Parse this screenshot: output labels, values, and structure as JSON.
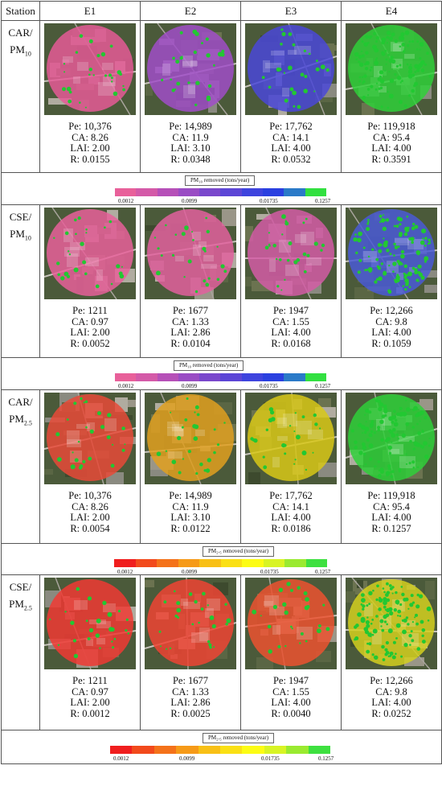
{
  "header": {
    "station_label": "Station",
    "columns": [
      "E1",
      "E2",
      "E3",
      "E4"
    ]
  },
  "blocks": [
    {
      "station_line1": "CAR/",
      "station_line2": "PM",
      "station_sub": "10",
      "cells": [
        {
          "overlay": "#e55a96",
          "pe": "Pe: 10,376",
          "ca": "CA: 8.26",
          "lai": "LAI: 2.00",
          "r": "R: 0.0155"
        },
        {
          "overlay": "#a04ec8",
          "pe": "Pe: 14,989",
          "ca": "CA: 11.9",
          "lai": "LAI: 3.10",
          "r": "R: 0.0348"
        },
        {
          "overlay": "#4a48d8",
          "pe": "Pe: 17,762",
          "ca": "CA: 14.1",
          "lai": "LAI: 4.00",
          "r": "R: 0.0532"
        },
        {
          "overlay": "#2fd03a",
          "pe": "Pe: 119,918",
          "ca": "CA: 95.4",
          "lai": "LAI: 4.00",
          "r": "R: 0.3591"
        }
      ],
      "legend": {
        "title": "PM₁₀ removed (tons/year)",
        "colors": [
          "#e8609a",
          "#d45aa8",
          "#b650b8",
          "#9a4cc4",
          "#7a48cc",
          "#5c46d6",
          "#3e44de",
          "#2a40e0",
          "#2a7ac8",
          "#32e040"
        ],
        "ticks": [
          "0.0012",
          "0.0099",
          "0.01735",
          "0.1257"
        ]
      }
    },
    {
      "station_line1": "CSE/",
      "station_line2": "PM",
      "station_sub": "10",
      "cells": [
        {
          "overlay": "#e8609a",
          "pe": "Pe: 1211",
          "ca": "CA: 0.97",
          "lai": "LAI: 2.00",
          "r": "R: 0.0052"
        },
        {
          "overlay": "#e2609e",
          "pe": "Pe: 1677",
          "ca": "CA: 1.33",
          "lai": "LAI: 2.86",
          "r": "R: 0.0104"
        },
        {
          "overlay": "#d45ca6",
          "pe": "Pe: 1947",
          "ca": "CA: 1.55",
          "lai": "LAI: 4.00",
          "r": "R: 0.0168"
        },
        {
          "overlay": "#4a5ad6",
          "pe": "Pe: 12,266",
          "ca": "CA: 9.8",
          "lai": "LAI: 4.00",
          "r": "R: 0.1059"
        }
      ],
      "legend": {
        "title": "PM₁₀ removed (tons/year)",
        "colors": [
          "#e8609a",
          "#d45aa8",
          "#b650b8",
          "#9a4cc4",
          "#7a48cc",
          "#5c46d6",
          "#3e44de",
          "#2a40e0",
          "#2a7ac8",
          "#32e040"
        ],
        "ticks": [
          "0.0012",
          "0.0099",
          "0.01735",
          "0.1257"
        ]
      }
    },
    {
      "station_line1": "CAR/",
      "station_line2": "PM",
      "station_sub": "2.5",
      "cells": [
        {
          "overlay": "#e84a38",
          "pe": "Pe: 10,376",
          "ca": "CA: 8.26",
          "lai": "LAI: 2.00",
          "r": "R: 0.0054"
        },
        {
          "overlay": "#e0a020",
          "pe": "Pe: 14,989",
          "ca": "CA: 11.9",
          "lai": "LAI: 3.10",
          "r": "R: 0.0122"
        },
        {
          "overlay": "#d8c818",
          "pe": "Pe: 17,762",
          "ca": "CA: 14.1",
          "lai": "LAI: 4.00",
          "r": "R: 0.0186"
        },
        {
          "overlay": "#2fd03a",
          "pe": "Pe: 119,918",
          "ca": "CA: 95.4",
          "lai": "LAI: 4.00",
          "r": "R: 0.1257"
        }
      ],
      "legend": {
        "title": "PM₂.₅ removed (tons/year)",
        "colors": [
          "#f01e1e",
          "#f24a1c",
          "#f4721a",
          "#f69a18",
          "#f8c016",
          "#fae014",
          "#fcfc14",
          "#d8f424",
          "#9aea30",
          "#3ee040"
        ],
        "ticks": [
          "0.0012",
          "0.0099",
          "0.01735",
          "0.1257"
        ]
      }
    },
    {
      "station_line1": "CSE/",
      "station_line2": "PM",
      "station_sub": "2.5",
      "cells": [
        {
          "overlay": "#f03a34",
          "pe": "Pe: 1211",
          "ca": "CA: 0.97",
          "lai": "LAI: 2.00",
          "r": "R: 0.0012"
        },
        {
          "overlay": "#ee4434",
          "pe": "Pe: 1677",
          "ca": "CA: 1.33",
          "lai": "LAI: 2.86",
          "r": "R: 0.0025"
        },
        {
          "overlay": "#ec5230",
          "pe": "Pe: 1947",
          "ca": "CA: 1.55",
          "lai": "LAI: 4.00",
          "r": "R: 0.0040"
        },
        {
          "overlay": "#d4d020",
          "pe": "Pe: 12,266",
          "ca": "CA: 9.8",
          "lai": "LAI: 4.00",
          "r": "R: 0.0252"
        }
      ],
      "legend": {
        "title": "PM₂.₅ removed (tons/year)",
        "colors": [
          "#f01e1e",
          "#f24a1c",
          "#f4721a",
          "#f69a18",
          "#f8c016",
          "#fae014",
          "#fcfc14",
          "#d8f424",
          "#9aea30",
          "#3ee040"
        ],
        "ticks": [
          "0.0012",
          "0.0099",
          "0.01735",
          "0.1257"
        ]
      }
    }
  ]
}
